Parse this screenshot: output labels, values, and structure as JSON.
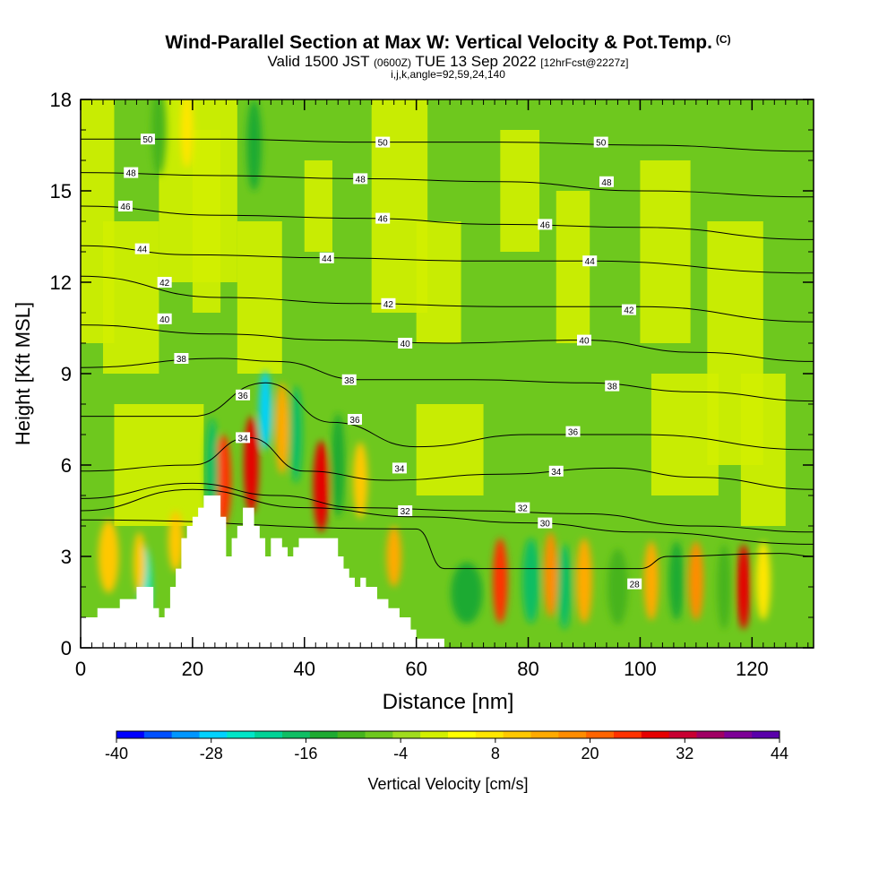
{
  "header": {
    "title_main": "Wind-Parallel Section at Max W: Vertical Velocity & Pot.Temp.",
    "title_mark": "(C)",
    "valid_prefix": "Valid 1500 JST",
    "valid_utc": "(0600Z)",
    "valid_date": "TUE 13 Sep 2022",
    "forecast": "[12hrFcst@2227z]",
    "subtitle": "i,j,k,angle=92,59,24,140"
  },
  "chart_data": {
    "type": "heatmap",
    "title": "Wind-Parallel Section at Max W: Vertical Velocity & Pot.Temp.",
    "xlabel": "Distance [nm]",
    "ylabel": "Height [Kft MSL]",
    "xlim": [
      0,
      131
    ],
    "ylim": [
      0,
      18
    ],
    "x_ticks": [
      0,
      20,
      40,
      60,
      80,
      100,
      120
    ],
    "y_ticks": [
      0,
      3,
      6,
      9,
      12,
      15,
      18
    ],
    "colorbar": {
      "label": "Vertical Velocity [cm/s]",
      "min": -40,
      "max": 44,
      "step": 4,
      "tick_values": [
        -40,
        -28,
        -16,
        -4,
        8,
        20,
        32,
        44
      ],
      "colors": [
        "#0000ff",
        "#0050ff",
        "#0096ff",
        "#00d2ff",
        "#00e6c8",
        "#00d296",
        "#0fbe64",
        "#1eaa32",
        "#46b41e",
        "#6ec81e",
        "#a0dc1e",
        "#d2f000",
        "#ffff00",
        "#ffe600",
        "#ffc800",
        "#ffaa00",
        "#ff8c00",
        "#ff6400",
        "#ff3200",
        "#e60000",
        "#c80032",
        "#a00064",
        "#7d0096",
        "#5a00aa"
      ]
    },
    "terrain": {
      "description": "white terrain silhouette along bottom of section",
      "profile": [
        [
          0,
          1
        ],
        [
          3,
          1
        ],
        [
          3,
          1.3
        ],
        [
          7,
          1.3
        ],
        [
          7,
          1.6
        ],
        [
          10,
          1.6
        ],
        [
          10,
          2
        ],
        [
          13,
          2
        ],
        [
          13,
          1.3
        ],
        [
          14,
          1.3
        ],
        [
          14,
          1
        ],
        [
          15,
          1
        ],
        [
          15,
          1.3
        ],
        [
          16,
          1.3
        ],
        [
          16,
          2
        ],
        [
          17,
          2
        ],
        [
          17,
          2.6
        ],
        [
          18,
          2.6
        ],
        [
          18,
          3.6
        ],
        [
          19,
          3.6
        ],
        [
          19,
          4
        ],
        [
          20,
          4
        ],
        [
          20,
          4.3
        ],
        [
          21,
          4.3
        ],
        [
          21,
          4.6
        ],
        [
          22,
          4.6
        ],
        [
          22,
          5
        ],
        [
          25,
          5
        ],
        [
          25,
          4.3
        ],
        [
          26,
          4.3
        ],
        [
          26,
          3
        ],
        [
          27,
          3
        ],
        [
          27,
          3.6
        ],
        [
          28,
          3.6
        ],
        [
          28,
          4
        ],
        [
          29,
          4
        ],
        [
          29,
          4.6
        ],
        [
          31,
          4.6
        ],
        [
          31,
          4
        ],
        [
          32,
          4
        ],
        [
          32,
          3.6
        ],
        [
          33,
          3.6
        ],
        [
          33,
          3
        ],
        [
          34,
          3
        ],
        [
          34,
          3.6
        ],
        [
          36,
          3.6
        ],
        [
          36,
          3.3
        ],
        [
          37,
          3.3
        ],
        [
          37,
          3
        ],
        [
          38,
          3
        ],
        [
          38,
          3.3
        ],
        [
          39,
          3.3
        ],
        [
          39,
          3.6
        ],
        [
          46,
          3.6
        ],
        [
          46,
          3
        ],
        [
          47,
          3
        ],
        [
          47,
          2.6
        ],
        [
          48,
          2.6
        ],
        [
          48,
          2.3
        ],
        [
          49,
          2.3
        ],
        [
          49,
          2
        ],
        [
          50,
          2
        ],
        [
          50,
          2.3
        ],
        [
          51,
          2.3
        ],
        [
          51,
          2
        ],
        [
          53,
          2
        ],
        [
          53,
          1.6
        ],
        [
          55,
          1.6
        ],
        [
          55,
          1.3
        ],
        [
          57,
          1.3
        ],
        [
          57,
          1
        ],
        [
          59,
          1
        ],
        [
          59,
          0.6
        ],
        [
          60,
          0.6
        ],
        [
          60,
          0.3
        ],
        [
          65,
          0.3
        ],
        [
          65,
          0
        ],
        [
          0,
          0
        ]
      ]
    },
    "isentropes": {
      "unit": "Pot.Temp.",
      "levels": [
        {
          "value": "28",
          "heights": [
            [
              0,
              4.2
            ],
            [
              60,
              3.9
            ],
            [
              65,
              2.6
            ],
            [
              75,
              2.6
            ],
            [
              85,
              2.6
            ],
            [
              100,
              2.6
            ],
            [
              105,
              3.0
            ],
            [
              125,
              3.1
            ],
            [
              131,
              3.0
            ]
          ]
        },
        {
          "value": "30",
          "heights": [
            [
              0,
              4.5
            ],
            [
              20,
              5.2
            ],
            [
              40,
              4.6
            ],
            [
              60,
              4.3
            ],
            [
              80,
              4.1
            ],
            [
              100,
              3.8
            ],
            [
              131,
              3.4
            ]
          ]
        },
        {
          "value": "32",
          "heights": [
            [
              0,
              4.9
            ],
            [
              20,
              5.4
            ],
            [
              35,
              5.0
            ],
            [
              50,
              4.6
            ],
            [
              70,
              4.5
            ],
            [
              90,
              4.4
            ],
            [
              110,
              4.0
            ],
            [
              131,
              3.8
            ]
          ]
        },
        {
          "value": "34",
          "heights": [
            [
              0,
              5.8
            ],
            [
              20,
              6.0
            ],
            [
              30,
              6.9
            ],
            [
              40,
              5.8
            ],
            [
              55,
              5.5
            ],
            [
              75,
              5.7
            ],
            [
              95,
              5.9
            ],
            [
              110,
              5.6
            ],
            [
              131,
              5.2
            ]
          ]
        },
        {
          "value": "36",
          "heights": [
            [
              0,
              7.6
            ],
            [
              20,
              7.6
            ],
            [
              33,
              8.7
            ],
            [
              45,
              7.4
            ],
            [
              60,
              6.6
            ],
            [
              80,
              7.0
            ],
            [
              100,
              7.0
            ],
            [
              131,
              6.5
            ]
          ]
        },
        {
          "value": "38",
          "heights": [
            [
              0,
              9.2
            ],
            [
              25,
              9.5
            ],
            [
              35,
              9.4
            ],
            [
              50,
              8.8
            ],
            [
              70,
              8.8
            ],
            [
              90,
              8.7
            ],
            [
              110,
              8.4
            ],
            [
              131,
              8.1
            ]
          ]
        },
        {
          "value": "40",
          "heights": [
            [
              0,
              10.6
            ],
            [
              25,
              10.3
            ],
            [
              45,
              10.1
            ],
            [
              65,
              10.0
            ],
            [
              90,
              10.1
            ],
            [
              110,
              9.7
            ],
            [
              131,
              9.4
            ]
          ]
        },
        {
          "value": "42",
          "heights": [
            [
              0,
              12.2
            ],
            [
              25,
              11.5
            ],
            [
              50,
              11.3
            ],
            [
              75,
              11.2
            ],
            [
              100,
              11.2
            ],
            [
              131,
              10.7
            ]
          ]
        },
        {
          "value": "44",
          "heights": [
            [
              0,
              13.2
            ],
            [
              20,
              12.9
            ],
            [
              45,
              12.8
            ],
            [
              70,
              12.7
            ],
            [
              90,
              12.7
            ],
            [
              131,
              12.3
            ]
          ]
        },
        {
          "value": "46",
          "heights": [
            [
              0,
              14.5
            ],
            [
              25,
              14.2
            ],
            [
              50,
              14.1
            ],
            [
              75,
              13.9
            ],
            [
              100,
              13.8
            ],
            [
              131,
              13.4
            ]
          ]
        },
        {
          "value": "48",
          "heights": [
            [
              0,
              15.6
            ],
            [
              25,
              15.5
            ],
            [
              50,
              15.4
            ],
            [
              75,
              15.3
            ],
            [
              100,
              15.0
            ],
            [
              131,
              14.8
            ]
          ]
        },
        {
          "value": "50",
          "heights": [
            [
              0,
              16.7
            ],
            [
              25,
              16.7
            ],
            [
              50,
              16.6
            ],
            [
              75,
              16.6
            ],
            [
              100,
              16.5
            ],
            [
              131,
              16.3
            ]
          ]
        }
      ],
      "labels": [
        {
          "text": "50",
          "x": 12,
          "y": 16.7
        },
        {
          "text": "50",
          "x": 54,
          "y": 16.6
        },
        {
          "text": "50",
          "x": 93,
          "y": 16.6
        },
        {
          "text": "48",
          "x": 9,
          "y": 15.6
        },
        {
          "text": "48",
          "x": 50,
          "y": 15.4
        },
        {
          "text": "48",
          "x": 94,
          "y": 15.3
        },
        {
          "text": "46",
          "x": 8,
          "y": 14.5
        },
        {
          "text": "46",
          "x": 54,
          "y": 14.1
        },
        {
          "text": "46",
          "x": 83,
          "y": 13.9
        },
        {
          "text": "44",
          "x": 11,
          "y": 13.1
        },
        {
          "text": "44",
          "x": 44,
          "y": 12.8
        },
        {
          "text": "44",
          "x": 91,
          "y": 12.7
        },
        {
          "text": "42",
          "x": 15,
          "y": 12.0
        },
        {
          "text": "42",
          "x": 55,
          "y": 11.3
        },
        {
          "text": "42",
          "x": 98,
          "y": 11.1
        },
        {
          "text": "40",
          "x": 15,
          "y": 10.8
        },
        {
          "text": "40",
          "x": 58,
          "y": 10.0
        },
        {
          "text": "40",
          "x": 90,
          "y": 10.1
        },
        {
          "text": "38",
          "x": 18,
          "y": 9.5
        },
        {
          "text": "38",
          "x": 48,
          "y": 8.8
        },
        {
          "text": "38",
          "x": 95,
          "y": 8.6
        },
        {
          "text": "36",
          "x": 29,
          "y": 8.3
        },
        {
          "text": "36",
          "x": 49,
          "y": 7.5
        },
        {
          "text": "36",
          "x": 88,
          "y": 7.1
        },
        {
          "text": "34",
          "x": 29,
          "y": 6.9
        },
        {
          "text": "34",
          "x": 57,
          "y": 5.9
        },
        {
          "text": "34",
          "x": 85,
          "y": 5.8
        },
        {
          "text": "32",
          "x": 58,
          "y": 4.5
        },
        {
          "text": "32",
          "x": 79,
          "y": 4.6
        },
        {
          "text": "30",
          "x": 83,
          "y": 4.1
        },
        {
          "text": "28",
          "x": 99,
          "y": 2.1
        }
      ]
    },
    "velocity_features": [
      {
        "x": 11.5,
        "y": 2.0,
        "w": 1.8,
        "h": 2.6,
        "value": -24
      },
      {
        "x": 10.5,
        "y": 2.8,
        "w": 1.5,
        "h": 2.0,
        "value": 16
      },
      {
        "x": 25.5,
        "y": 5.5,
        "w": 2.2,
        "h": 3.0,
        "value": 32
      },
      {
        "x": 23.5,
        "y": 5.8,
        "w": 1.6,
        "h": 3.5,
        "value": -16
      },
      {
        "x": 30.5,
        "y": 6.0,
        "w": 2.0,
        "h": 3.2,
        "value": 36
      },
      {
        "x": 33.0,
        "y": 7.8,
        "w": 1.6,
        "h": 2.6,
        "value": -28
      },
      {
        "x": 36.0,
        "y": 7.2,
        "w": 1.8,
        "h": 3.0,
        "value": 20
      },
      {
        "x": 38.5,
        "y": 7.0,
        "w": 1.6,
        "h": 3.2,
        "value": -16
      },
      {
        "x": 43.0,
        "y": 5.3,
        "w": 2.2,
        "h": 3.0,
        "value": 36
      },
      {
        "x": 46.0,
        "y": 6.0,
        "w": 1.8,
        "h": 3.4,
        "value": -12
      },
      {
        "x": 50.0,
        "y": 5.5,
        "w": 2.0,
        "h": 2.5,
        "value": 16
      },
      {
        "x": 56.0,
        "y": 3.0,
        "w": 2.0,
        "h": 2.0,
        "value": 20
      },
      {
        "x": 69.0,
        "y": 1.8,
        "w": 5.0,
        "h": 2.0,
        "value": -12
      },
      {
        "x": 75.0,
        "y": 2.2,
        "w": 2.0,
        "h": 2.8,
        "value": 32
      },
      {
        "x": 80.5,
        "y": 2.2,
        "w": 2.5,
        "h": 2.8,
        "value": -16
      },
      {
        "x": 84.0,
        "y": 2.4,
        "w": 1.8,
        "h": 2.8,
        "value": 24
      },
      {
        "x": 86.5,
        "y": 2.0,
        "w": 1.8,
        "h": 2.8,
        "value": -16
      },
      {
        "x": 90.0,
        "y": 2.2,
        "w": 2.2,
        "h": 2.8,
        "value": 20
      },
      {
        "x": 96.0,
        "y": 2.0,
        "w": 3.0,
        "h": 2.5,
        "value": -8
      },
      {
        "x": 102.0,
        "y": 2.2,
        "w": 2.0,
        "h": 2.6,
        "value": 20
      },
      {
        "x": 106.5,
        "y": 2.2,
        "w": 2.0,
        "h": 2.6,
        "value": -12
      },
      {
        "x": 110.0,
        "y": 2.2,
        "w": 2.0,
        "h": 2.6,
        "value": 24
      },
      {
        "x": 118.5,
        "y": 2.0,
        "w": 1.8,
        "h": 2.8,
        "value": 36
      },
      {
        "x": 115.0,
        "y": 2.0,
        "w": 1.8,
        "h": 2.8,
        "value": -8
      },
      {
        "x": 122.0,
        "y": 2.2,
        "w": 2.0,
        "h": 2.6,
        "value": 12
      },
      {
        "x": 5.0,
        "y": 3.0,
        "w": 3.0,
        "h": 2.4,
        "value": 16
      },
      {
        "x": 17.0,
        "y": 3.5,
        "w": 2.0,
        "h": 2.0,
        "value": 16
      },
      {
        "x": 19.0,
        "y": 17.0,
        "w": 1.6,
        "h": 2.5,
        "value": 12
      },
      {
        "x": 31.0,
        "y": 16.5,
        "w": 2.0,
        "h": 3.0,
        "value": -10
      },
      {
        "x": 14.0,
        "y": 17.0,
        "w": 2.0,
        "h": 3.0,
        "value": -6
      }
    ]
  }
}
